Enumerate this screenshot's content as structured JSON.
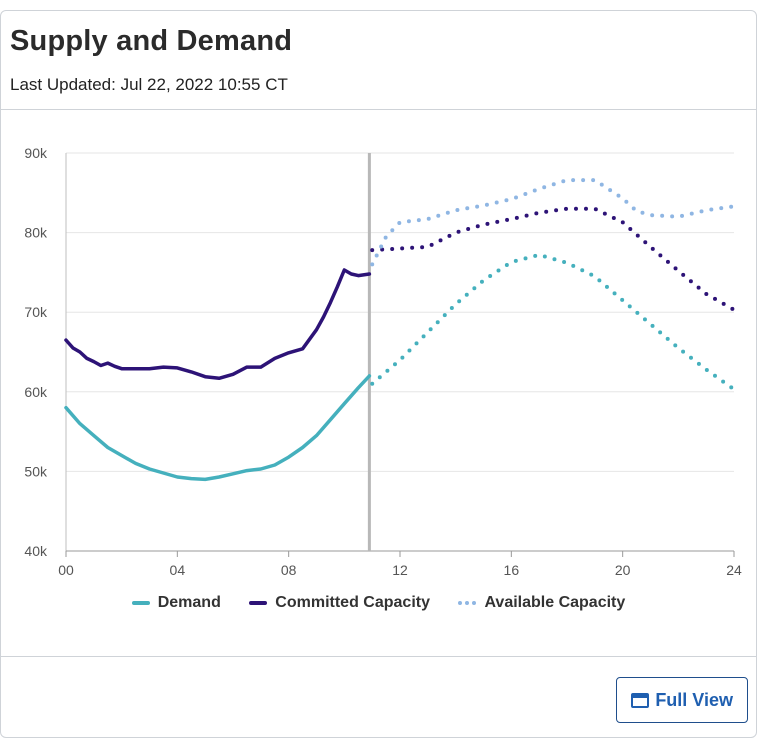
{
  "header": {
    "title": "Supply and Demand",
    "last_updated": "Last Updated: Jul 22, 2022 10:55 CT"
  },
  "footer": {
    "full_view_label": "Full View"
  },
  "colors": {
    "demand": "#45b0bd",
    "committed": "#2d1377",
    "available": "#8fb6e3",
    "now_line": "#b8b8b8",
    "grid": "#e6e6e6",
    "axis_text": "#555555"
  },
  "chart_data": {
    "type": "line",
    "title": "Supply and Demand",
    "x_ticks": [
      "00",
      "04",
      "08",
      "12",
      "16",
      "20",
      "24"
    ],
    "x_tick_values": [
      0,
      4,
      8,
      12,
      16,
      20,
      24
    ],
    "y_ticks": [
      "40k",
      "50k",
      "60k",
      "70k",
      "80k",
      "90k"
    ],
    "y_tick_values": [
      40000,
      50000,
      60000,
      70000,
      80000,
      90000
    ],
    "xlim": [
      0,
      24
    ],
    "ylim": [
      40000,
      90000
    ],
    "current_time": 10.9,
    "grid": true,
    "legend_position": "bottom-center",
    "series": [
      {
        "name": "Demand",
        "style": "solid",
        "x": [
          0,
          0.5,
          1,
          1.5,
          2,
          2.5,
          3,
          3.5,
          4,
          4.5,
          5,
          5.5,
          6,
          6.5,
          7,
          7.5,
          8,
          8.5,
          9,
          9.5,
          10,
          10.5,
          10.9
        ],
        "y": [
          58000,
          56000,
          54500,
          53000,
          52000,
          51000,
          50300,
          49800,
          49300,
          49100,
          49000,
          49300,
          49700,
          50100,
          50300,
          50800,
          51800,
          53000,
          54500,
          56500,
          58500,
          60500,
          62000
        ]
      },
      {
        "name": "Demand",
        "style": "dotted",
        "x": [
          11,
          12,
          13,
          14,
          15,
          16,
          17,
          18,
          19,
          20,
          21,
          22,
          23,
          24
        ],
        "y": [
          61000,
          64000,
          67500,
          71000,
          74000,
          76300,
          77200,
          76200,
          74500,
          71500,
          68500,
          65500,
          62800,
          60300
        ]
      },
      {
        "name": "Committed Capacity",
        "style": "solid",
        "x": [
          0,
          0.25,
          0.5,
          0.75,
          1,
          1.25,
          1.5,
          1.75,
          2,
          2.5,
          3,
          3.5,
          4,
          4.5,
          5,
          5.5,
          6,
          6.5,
          7,
          7.5,
          8,
          8.5,
          9,
          9.25,
          9.5,
          9.75,
          10,
          10.25,
          10.5,
          10.9
        ],
        "y": [
          66500,
          65500,
          65000,
          64200,
          63800,
          63300,
          63600,
          63200,
          62900,
          62900,
          62900,
          63100,
          63000,
          62500,
          61900,
          61700,
          62200,
          63100,
          63100,
          64200,
          64900,
          65400,
          67800,
          69400,
          71200,
          73200,
          75300,
          74800,
          74600,
          74800
        ]
      },
      {
        "name": "Committed Capacity",
        "style": "dotted",
        "x": [
          11,
          12,
          13,
          14,
          15,
          16,
          17,
          18,
          19,
          20,
          21,
          22,
          23,
          24
        ],
        "y": [
          77800,
          78000,
          78200,
          80000,
          81000,
          81700,
          82500,
          83000,
          83000,
          81300,
          78200,
          75200,
          72300,
          70300
        ]
      },
      {
        "name": "Available Capacity",
        "style": "dotted",
        "x": [
          11,
          11.5,
          12,
          13,
          14,
          15,
          16,
          17,
          18,
          19,
          20,
          20.5,
          21,
          22,
          23,
          24
        ],
        "y": [
          76000,
          79500,
          81300,
          81700,
          82800,
          83400,
          84200,
          85500,
          86600,
          86600,
          84300,
          82700,
          82200,
          82000,
          82800,
          83300
        ]
      }
    ],
    "legend": [
      "Demand",
      "Committed Capacity",
      "Available Capacity"
    ]
  }
}
